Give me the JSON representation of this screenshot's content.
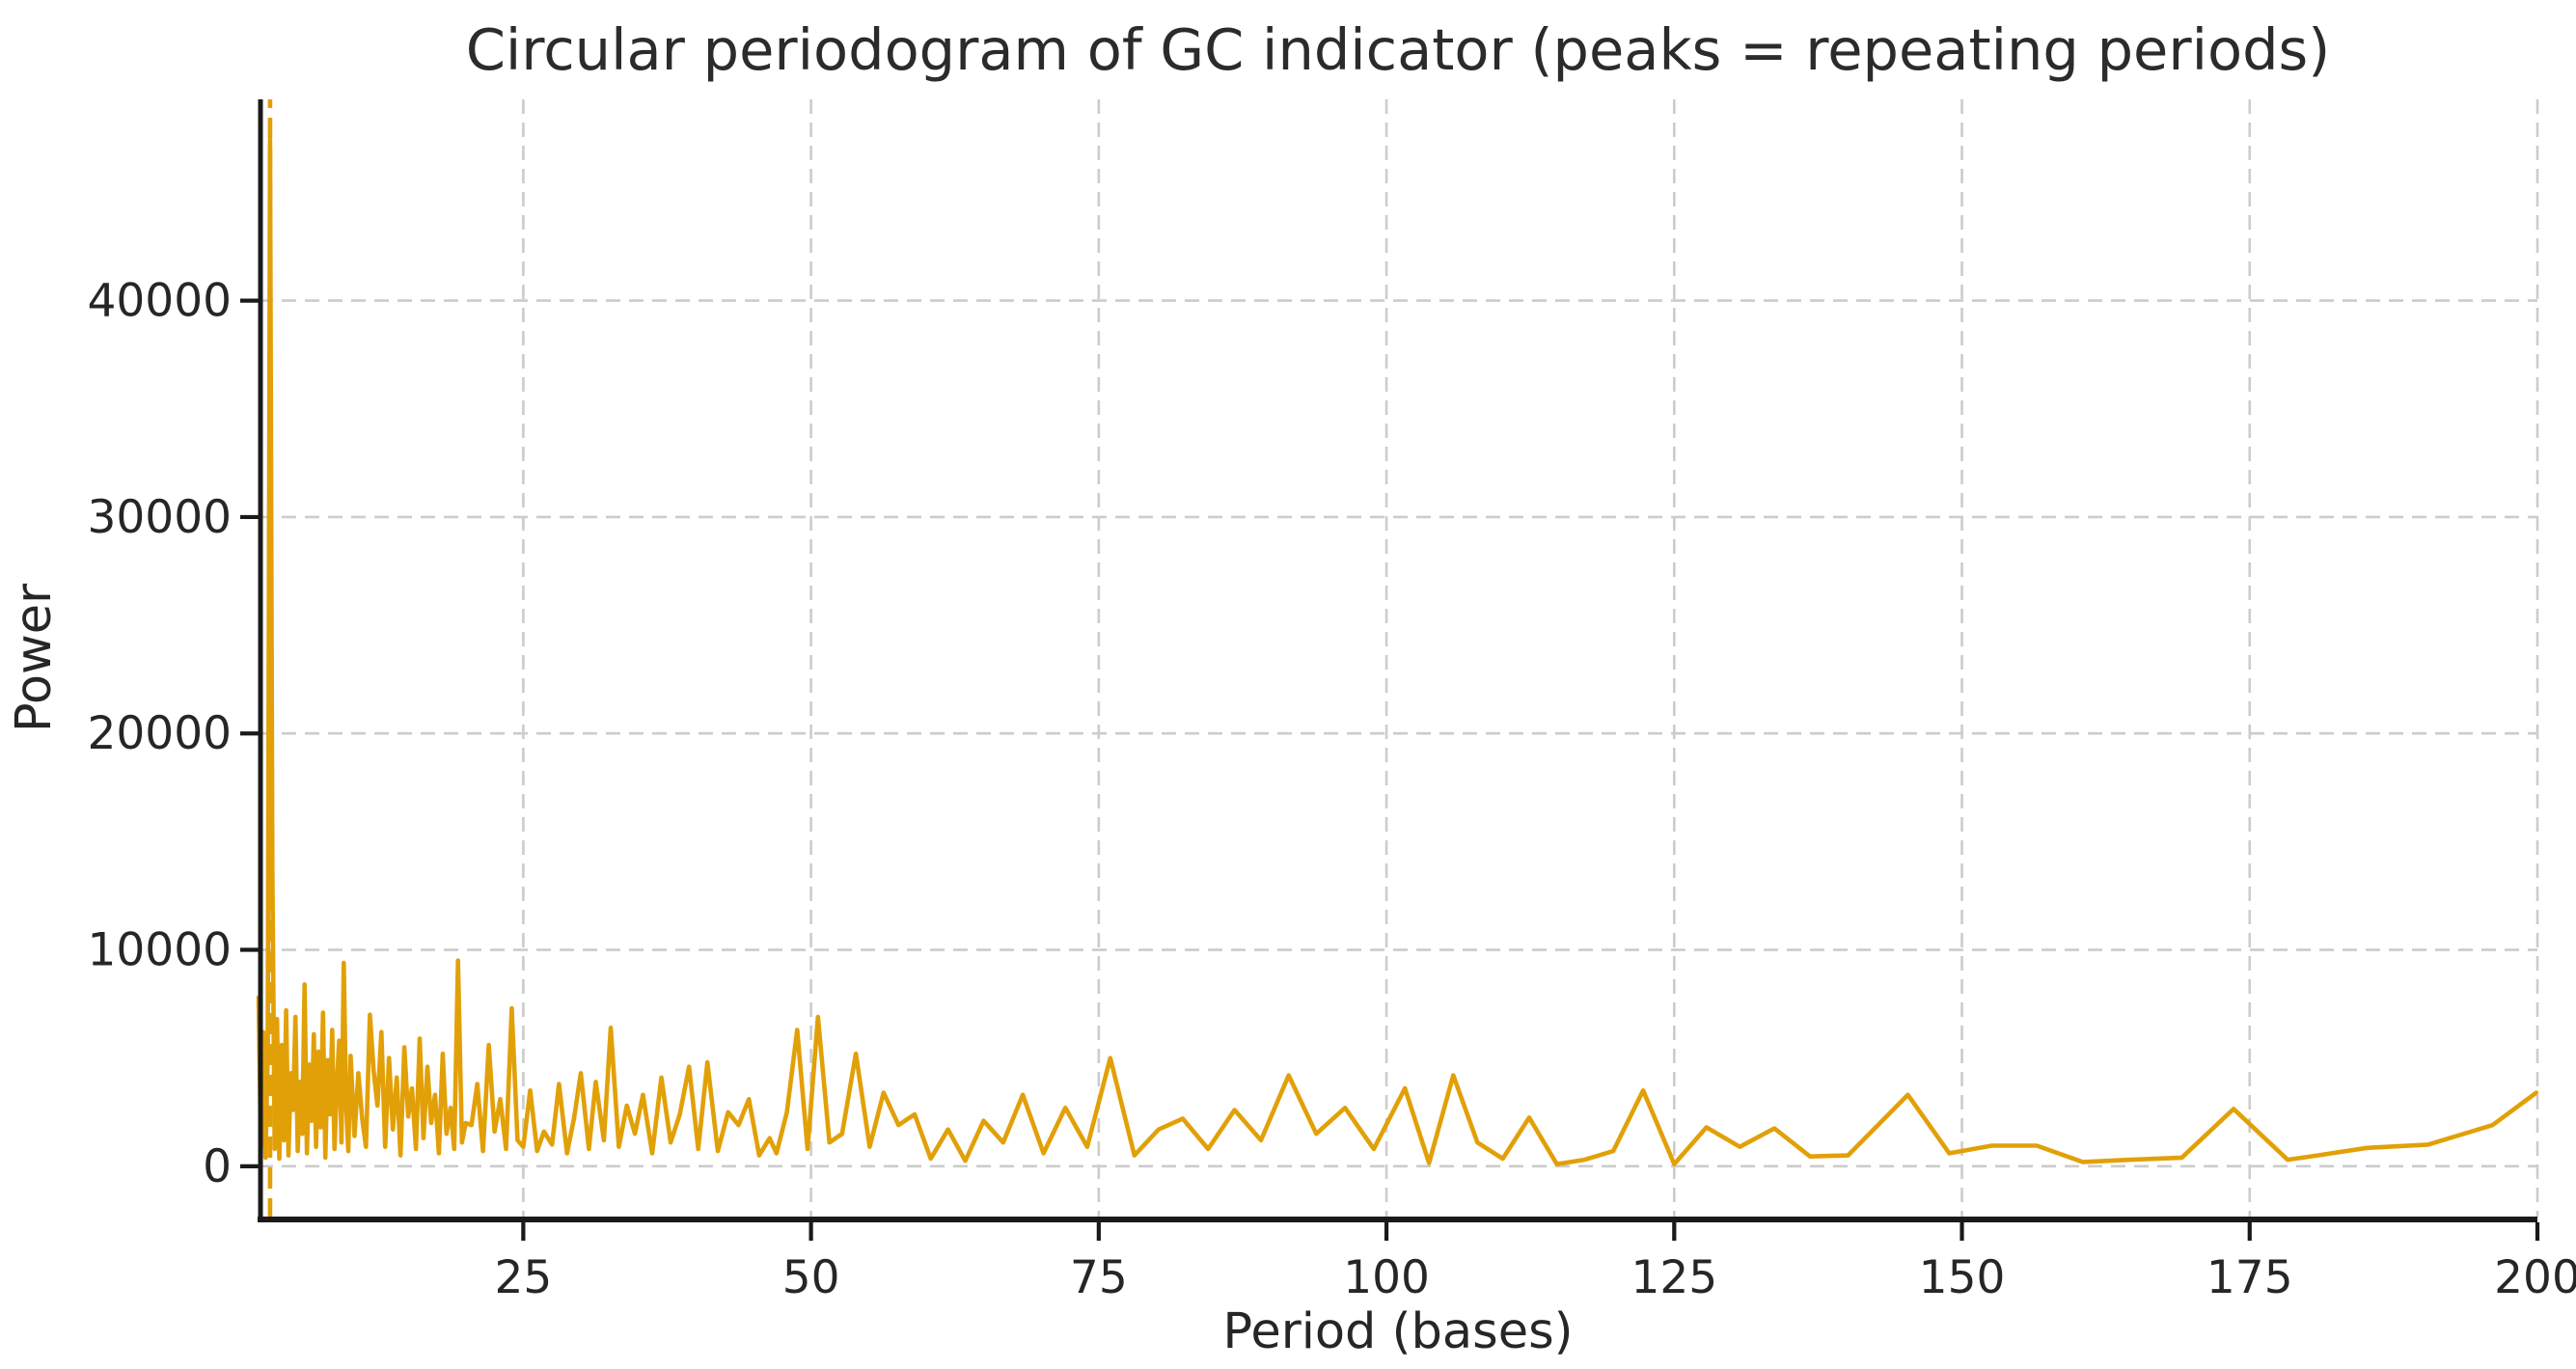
{
  "title": "Circular periodogram of GC indicator (peaks = repeating periods)",
  "axes": {
    "xlabel": "Period (bases)",
    "ylabel": "Power",
    "x_ticks": [
      {
        "value": 25,
        "label": "25"
      },
      {
        "value": 50,
        "label": "50"
      },
      {
        "value": 75,
        "label": "75"
      },
      {
        "value": 100,
        "label": "100"
      },
      {
        "value": 125,
        "label": "125"
      },
      {
        "value": 150,
        "label": "150"
      },
      {
        "value": 175,
        "label": "175"
      },
      {
        "value": 200,
        "label": "200"
      }
    ],
    "y_ticks": [
      {
        "value": 0,
        "label": "0"
      },
      {
        "value": 10000,
        "label": "10000"
      },
      {
        "value": 20000,
        "label": "20000"
      },
      {
        "value": 30000,
        "label": "30000"
      },
      {
        "value": 40000,
        "label": "40000"
      }
    ]
  },
  "style": {
    "line_color": "#e2a008",
    "grid_color": "#cccccc",
    "spine_color": "#1a1a1a",
    "text_color": "#262626",
    "background": "#ffffff"
  },
  "chart_data": {
    "type": "line",
    "title": "Circular periodogram of GC indicator (peaks = repeating periods)",
    "xlabel": "Period (bases)",
    "ylabel": "Power",
    "xlim": [
      2,
      200
    ],
    "ylim": [
      -2370,
      49300
    ],
    "grid": true,
    "legend": false,
    "annotations": [
      {
        "type": "vline",
        "style": "dashed",
        "x": 3,
        "note": "peak period marker"
      }
    ],
    "series": [
      {
        "name": "Power",
        "points": [
          [
            2.0,
            7800
          ],
          [
            2.2,
            900
          ],
          [
            2.4,
            6200
          ],
          [
            2.6,
            400
          ],
          [
            2.8,
            5200
          ],
          [
            3.0,
            47400
          ],
          [
            3.2,
            13700
          ],
          [
            3.4,
            800
          ],
          [
            3.6,
            6800
          ],
          [
            3.8,
            350
          ],
          [
            4.0,
            5600
          ],
          [
            4.2,
            1200
          ],
          [
            4.4,
            7200
          ],
          [
            4.6,
            500
          ],
          [
            4.8,
            4300
          ],
          [
            5.0,
            2600
          ],
          [
            5.2,
            6900
          ],
          [
            5.4,
            700
          ],
          [
            5.6,
            3900
          ],
          [
            5.8,
            1500
          ],
          [
            6.0,
            8400
          ],
          [
            6.2,
            600
          ],
          [
            6.4,
            4700
          ],
          [
            6.6,
            2100
          ],
          [
            6.8,
            6100
          ],
          [
            7.0,
            900
          ],
          [
            7.2,
            5300
          ],
          [
            7.4,
            1800
          ],
          [
            7.6,
            7100
          ],
          [
            7.8,
            400
          ],
          [
            8.0,
            4900
          ],
          [
            8.2,
            2400
          ],
          [
            8.4,
            6300
          ],
          [
            8.6,
            800
          ],
          [
            8.8,
            3700
          ],
          [
            9.0,
            5800
          ],
          [
            9.2,
            1100
          ],
          [
            9.4,
            9400
          ],
          [
            9.6,
            2900
          ],
          [
            9.8,
            700
          ],
          [
            10.0,
            5100
          ],
          [
            10.33,
            1400
          ],
          [
            10.67,
            4300
          ],
          [
            11.0,
            2200
          ],
          [
            11.33,
            900
          ],
          [
            11.67,
            7000
          ],
          [
            12.0,
            4400
          ],
          [
            12.33,
            2800
          ],
          [
            12.67,
            6200
          ],
          [
            13.0,
            900
          ],
          [
            13.33,
            5000
          ],
          [
            13.67,
            1700
          ],
          [
            14.0,
            4100
          ],
          [
            14.33,
            500
          ],
          [
            14.67,
            5500
          ],
          [
            15.0,
            2300
          ],
          [
            15.33,
            3600
          ],
          [
            15.67,
            800
          ],
          [
            16.0,
            5900
          ],
          [
            16.33,
            1300
          ],
          [
            16.67,
            4600
          ],
          [
            17.0,
            2000
          ],
          [
            17.33,
            3300
          ],
          [
            17.67,
            600
          ],
          [
            18.0,
            5200
          ],
          [
            18.33,
            1500
          ],
          [
            18.67,
            2700
          ],
          [
            19.0,
            800
          ],
          [
            19.33,
            9500
          ],
          [
            19.67,
            1100
          ],
          [
            20.0,
            2000
          ],
          [
            20.5,
            1900
          ],
          [
            21.0,
            3800
          ],
          [
            21.5,
            700
          ],
          [
            22.0,
            5600
          ],
          [
            22.5,
            1600
          ],
          [
            23.0,
            3100
          ],
          [
            23.5,
            800
          ],
          [
            24.0,
            7300
          ],
          [
            24.5,
            1200
          ],
          [
            25.0,
            900
          ],
          [
            25.6,
            3500
          ],
          [
            26.2,
            700
          ],
          [
            26.8,
            1600
          ],
          [
            27.5,
            1000
          ],
          [
            28.1,
            3800
          ],
          [
            28.8,
            600
          ],
          [
            29.4,
            2200
          ],
          [
            30.0,
            4300
          ],
          [
            30.7,
            800
          ],
          [
            31.3,
            3900
          ],
          [
            32.0,
            1200
          ],
          [
            32.6,
            6400
          ],
          [
            33.3,
            900
          ],
          [
            34.0,
            2800
          ],
          [
            34.7,
            1500
          ],
          [
            35.4,
            3300
          ],
          [
            36.2,
            600
          ],
          [
            37.0,
            4100
          ],
          [
            37.8,
            1100
          ],
          [
            38.6,
            2400
          ],
          [
            39.4,
            4600
          ],
          [
            40.2,
            800
          ],
          [
            41.0,
            4800
          ],
          [
            41.9,
            700
          ],
          [
            42.8,
            2500
          ],
          [
            43.7,
            1900
          ],
          [
            44.6,
            3100
          ],
          [
            45.5,
            500
          ],
          [
            46.4,
            1300
          ],
          [
            47.0,
            600
          ],
          [
            47.9,
            2500
          ],
          [
            48.8,
            6300
          ],
          [
            49.7,
            800
          ],
          [
            50.6,
            6900
          ],
          [
            51.6,
            1100
          ],
          [
            52.7,
            1500
          ],
          [
            53.9,
            5200
          ],
          [
            55.1,
            900
          ],
          [
            56.3,
            3400
          ],
          [
            57.6,
            1900
          ],
          [
            59.0,
            2400
          ],
          [
            60.4,
            350
          ],
          [
            61.9,
            1700
          ],
          [
            63.4,
            250
          ],
          [
            65.0,
            2100
          ],
          [
            66.7,
            1100
          ],
          [
            68.4,
            3300
          ],
          [
            70.2,
            600
          ],
          [
            72.1,
            2700
          ],
          [
            74.0,
            900
          ],
          [
            76.0,
            5000
          ],
          [
            78.1,
            500
          ],
          [
            80.2,
            1700
          ],
          [
            82.3,
            2200
          ],
          [
            84.5,
            800
          ],
          [
            86.8,
            2600
          ],
          [
            89.1,
            1200
          ],
          [
            91.5,
            4200
          ],
          [
            93.9,
            1500
          ],
          [
            96.4,
            2700
          ],
          [
            98.9,
            800
          ],
          [
            101.6,
            3600
          ],
          [
            103.7,
            150
          ],
          [
            105.8,
            4200
          ],
          [
            107.9,
            1100
          ],
          [
            110.1,
            350
          ],
          [
            112.4,
            2250
          ],
          [
            114.8,
            100
          ],
          [
            117.2,
            300
          ],
          [
            119.7,
            700
          ],
          [
            122.3,
            3500
          ],
          [
            125.0,
            100
          ],
          [
            127.8,
            1800
          ],
          [
            130.7,
            900
          ],
          [
            133.7,
            1750
          ],
          [
            136.8,
            450
          ],
          [
            140.1,
            500
          ],
          [
            145.3,
            3300
          ],
          [
            148.9,
            600
          ],
          [
            152.6,
            950
          ],
          [
            156.5,
            950
          ],
          [
            160.5,
            200
          ],
          [
            164.7,
            300
          ],
          [
            169.1,
            400
          ],
          [
            173.6,
            2650
          ],
          [
            178.3,
            300
          ],
          [
            180.9,
            500
          ],
          [
            185.2,
            850
          ],
          [
            190.5,
            1000
          ],
          [
            196.1,
            1900
          ],
          [
            199.9,
            3400
          ]
        ]
      }
    ]
  }
}
